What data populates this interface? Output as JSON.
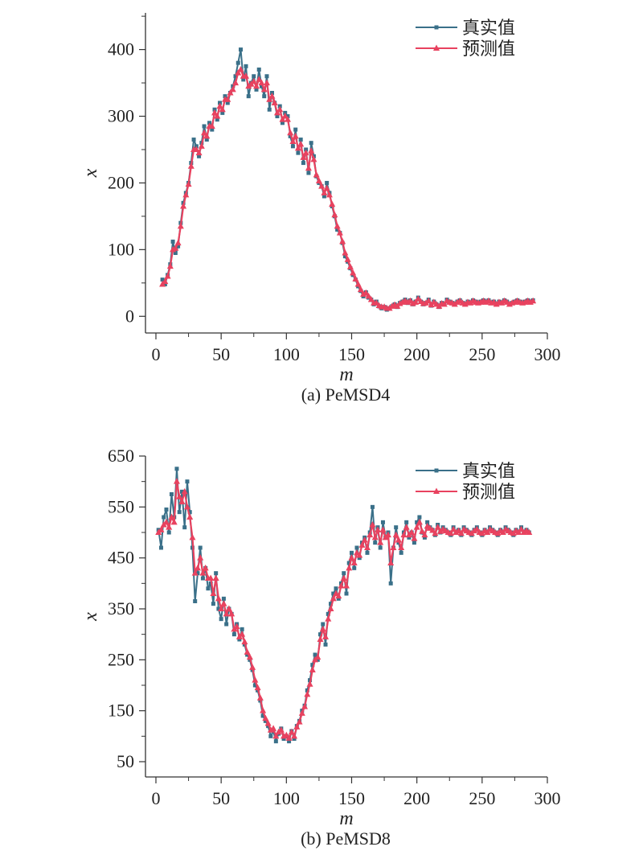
{
  "colors": {
    "actual": "#3a7089",
    "predicted": "#e8425f",
    "axis": "#333333"
  },
  "chart_data": [
    {
      "type": "line",
      "caption": "(a) PeMSD4",
      "xlabel": "m",
      "ylabel": "x",
      "xlim": [
        -8,
        300
      ],
      "ylim": [
        -25,
        455
      ],
      "xticks": [
        0,
        50,
        100,
        150,
        200,
        250,
        300
      ],
      "yticks": [
        0,
        100,
        200,
        300,
        400
      ],
      "legend_position": "top-right",
      "x_range": [
        5,
        287
      ],
      "step": 2,
      "series": [
        {
          "name": "真实值",
          "marker": "square",
          "values": [
            55,
            48,
            62,
            78,
            112,
            95,
            105,
            140,
            170,
            185,
            200,
            230,
            265,
            255,
            240,
            260,
            285,
            265,
            290,
            280,
            310,
            295,
            320,
            305,
            330,
            320,
            335,
            345,
            360,
            380,
            400,
            355,
            375,
            330,
            350,
            360,
            340,
            370,
            345,
            330,
            360,
            310,
            335,
            320,
            300,
            315,
            290,
            305,
            300,
            270,
            255,
            280,
            245,
            265,
            230,
            250,
            215,
            260,
            240,
            210,
            200,
            195,
            180,
            200,
            185,
            165,
            150,
            130,
            125,
            110,
            90,
            82,
            72,
            62,
            55,
            45,
            38,
            30,
            36,
            28,
            25,
            18,
            22,
            15,
            12,
            14,
            10,
            12,
            15,
            18,
            14,
            20,
            22,
            25,
            20,
            24,
            18,
            22,
            28,
            22,
            18,
            20,
            25,
            16,
            22,
            18,
            14,
            20,
            18,
            25,
            22,
            20,
            18,
            22,
            24,
            20,
            18,
            22,
            20,
            24,
            22,
            20,
            22,
            24,
            22,
            24,
            20,
            22,
            18,
            22,
            20,
            24,
            22,
            18,
            20,
            22,
            24,
            22,
            20,
            22,
            24,
            22,
            24
          ],
          "note": ""
        },
        {
          "name": "预测值",
          "marker": "triangle",
          "values": [
            48,
            52,
            60,
            75,
            100,
            102,
            110,
            135,
            165,
            182,
            198,
            225,
            250,
            250,
            245,
            255,
            275,
            270,
            285,
            285,
            305,
            300,
            315,
            310,
            325,
            325,
            335,
            340,
            350,
            365,
            370,
            360,
            360,
            345,
            348,
            352,
            345,
            355,
            350,
            340,
            350,
            325,
            330,
            320,
            305,
            310,
            295,
            300,
            295,
            275,
            262,
            270,
            252,
            258,
            238,
            245,
            222,
            248,
            235,
            212,
            203,
            195,
            185,
            192,
            182,
            168,
            152,
            135,
            125,
            112,
            95,
            85,
            74,
            65,
            56,
            48,
            40,
            33,
            35,
            30,
            25,
            20,
            20,
            16,
            14,
            14,
            12,
            12,
            15,
            17,
            15,
            19,
            21,
            23,
            21,
            23,
            19,
            21,
            26,
            22,
            19,
            20,
            23,
            17,
            21,
            18,
            15,
            19,
            18,
            23,
            21,
            20,
            18,
            21,
            23,
            20,
            18,
            21,
            20,
            23,
            21,
            20,
            21,
            23,
            21,
            23,
            20,
            21,
            18,
            21,
            20,
            23,
            21,
            18,
            20,
            21,
            23,
            21,
            20,
            21,
            23,
            21,
            23
          ]
        }
      ]
    },
    {
      "type": "line",
      "caption": "(b) PeMSD8",
      "xlabel": "m",
      "ylabel": "x",
      "xlim": [
        -8,
        300
      ],
      "ylim": [
        20,
        650
      ],
      "xticks": [
        0,
        50,
        100,
        150,
        200,
        250,
        300
      ],
      "yticks": [
        50,
        150,
        250,
        350,
        450,
        550,
        650
      ],
      "legend_position": "top-right",
      "x_range": [
        2,
        287
      ],
      "step": 2,
      "series": [
        {
          "name": "真实值",
          "marker": "square",
          "values": [
            505,
            470,
            530,
            545,
            500,
            575,
            530,
            625,
            540,
            580,
            510,
            600,
            540,
            470,
            365,
            420,
            470,
            410,
            430,
            390,
            400,
            360,
            420,
            350,
            330,
            370,
            320,
            350,
            340,
            300,
            320,
            290,
            310,
            280,
            260,
            250,
            230,
            200,
            190,
            170,
            140,
            130,
            120,
            100,
            110,
            90,
            105,
            115,
            95,
            100,
            90,
            110,
            95,
            120,
            130,
            150,
            160,
            190,
            210,
            240,
            260,
            250,
            300,
            320,
            280,
            340,
            360,
            380,
            390,
            370,
            400,
            420,
            380,
            440,
            460,
            430,
            470,
            450,
            480,
            490,
            460,
            500,
            550,
            480,
            510,
            470,
            520,
            490,
            500,
            400,
            470,
            510,
            480,
            460,
            500,
            520,
            490,
            500,
            480,
            520,
            530,
            500,
            490,
            520,
            510,
            505,
            495,
            515,
            500,
            510,
            505,
            500,
            495,
            510,
            500,
            505,
            495,
            510,
            505,
            500,
            495,
            505,
            510,
            500,
            495,
            505,
            500,
            510,
            505,
            500,
            495,
            505,
            500,
            510,
            505,
            500,
            495,
            505,
            500,
            510,
            500,
            505,
            500
          ]
        },
        {
          "name": "预测值",
          "marker": "triangle",
          "values": [
            500,
            505,
            515,
            520,
            510,
            530,
            520,
            600,
            570,
            560,
            580,
            550,
            530,
            490,
            420,
            430,
            450,
            420,
            430,
            410,
            410,
            380,
            410,
            370,
            350,
            360,
            340,
            350,
            340,
            310,
            315,
            295,
            300,
            285,
            265,
            255,
            235,
            210,
            195,
            175,
            150,
            135,
            125,
            112,
            115,
            100,
            108,
            112,
            100,
            102,
            96,
            108,
            100,
            118,
            128,
            145,
            158,
            182,
            202,
            230,
            250,
            255,
            290,
            310,
            295,
            330,
            350,
            370,
            380,
            375,
            395,
            410,
            395,
            430,
            450,
            440,
            460,
            455,
            475,
            485,
            470,
            495,
            515,
            490,
            505,
            480,
            505,
            490,
            495,
            440,
            470,
            495,
            485,
            470,
            495,
            510,
            495,
            500,
            488,
            510,
            520,
            502,
            495,
            512,
            508,
            504,
            498,
            510,
            502,
            506,
            503,
            500,
            498,
            506,
            500,
            503,
            498,
            506,
            503,
            500,
            498,
            503,
            506,
            500,
            498,
            503,
            500,
            506,
            503,
            500,
            498,
            503,
            500,
            506,
            503,
            500,
            498,
            503,
            500,
            506,
            500,
            503,
            500
          ]
        }
      ]
    }
  ]
}
